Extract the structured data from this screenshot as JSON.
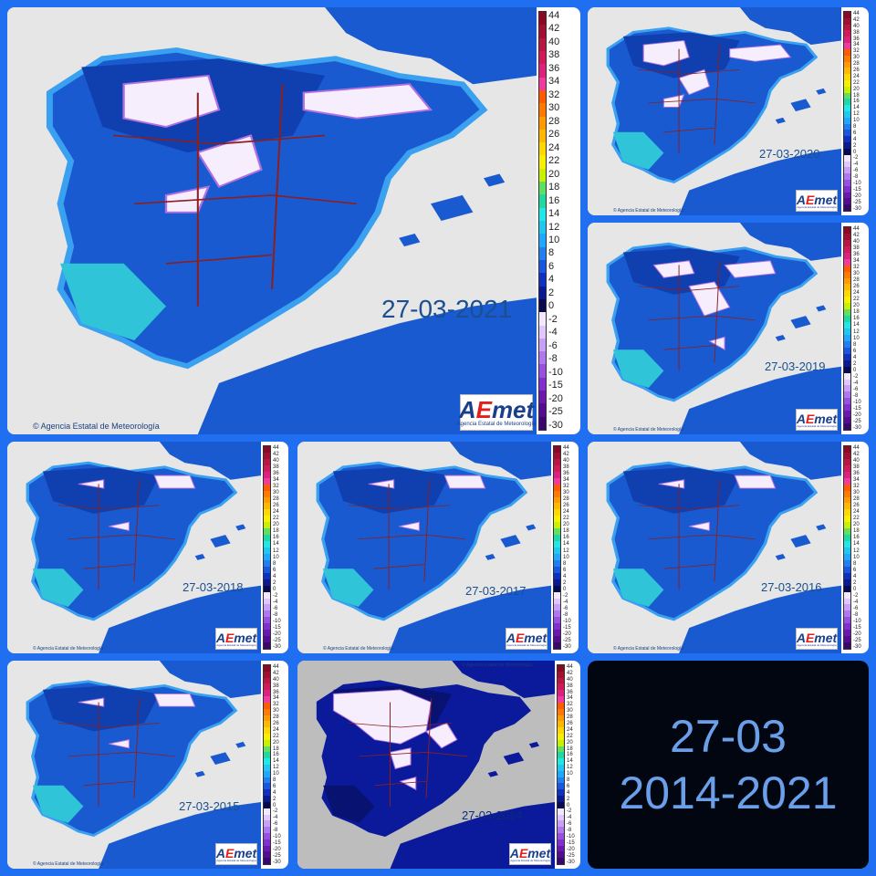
{
  "legend": {
    "values": [
      "44",
      "42",
      "40",
      "38",
      "36",
      "34",
      "32",
      "30",
      "28",
      "26",
      "24",
      "22",
      "20",
      "18",
      "16",
      "14",
      "12",
      "10",
      "8",
      "6",
      "4",
      "2",
      "0",
      "-2",
      "-4",
      "-6",
      "-8",
      "-10",
      "-15",
      "-20",
      "-25",
      "-30"
    ],
    "colors": [
      "#8a0a24",
      "#a01030",
      "#b81840",
      "#d01a5a",
      "#e02080",
      "#f03aa0",
      "#ff5a00",
      "#ff7a00",
      "#ff9a00",
      "#ffb800",
      "#ffd800",
      "#f8f000",
      "#c8f000",
      "#60e060",
      "#20d8a0",
      "#20e8e8",
      "#20c8f0",
      "#20a8ff",
      "#2080f0",
      "#1858e0",
      "#1030c0",
      "#0a1a90",
      "#080a50",
      "#f4e8ff",
      "#e0c8ff",
      "#c8a0f8",
      "#b078f0",
      "#9850e0",
      "#8030d0",
      "#6a18b0",
      "#540c90",
      "#3c0670"
    ]
  },
  "aemet": {
    "logo_a": "A",
    "logo_e": "E",
    "logo_rest": "met",
    "subtitle": "Agencia Estatal de Meteorología"
  },
  "copyright": "© Agencia Estatal de Meteorología",
  "maps": [
    {
      "date": "27-03-2021",
      "snow": "high"
    },
    {
      "date": "27-03-2020",
      "snow": "high"
    },
    {
      "date": "27-03-2019",
      "snow": "medium"
    },
    {
      "date": "27-03-2018",
      "snow": "low"
    },
    {
      "date": "27-03-2017",
      "snow": "low"
    },
    {
      "date": "27-03-2016",
      "snow": "low"
    },
    {
      "date": "27-03-2015",
      "snow": "low"
    },
    {
      "date": "27-03-2014",
      "snow": "very-high"
    }
  ],
  "summary": {
    "line1": "27-03",
    "line2": "2014-2021"
  }
}
